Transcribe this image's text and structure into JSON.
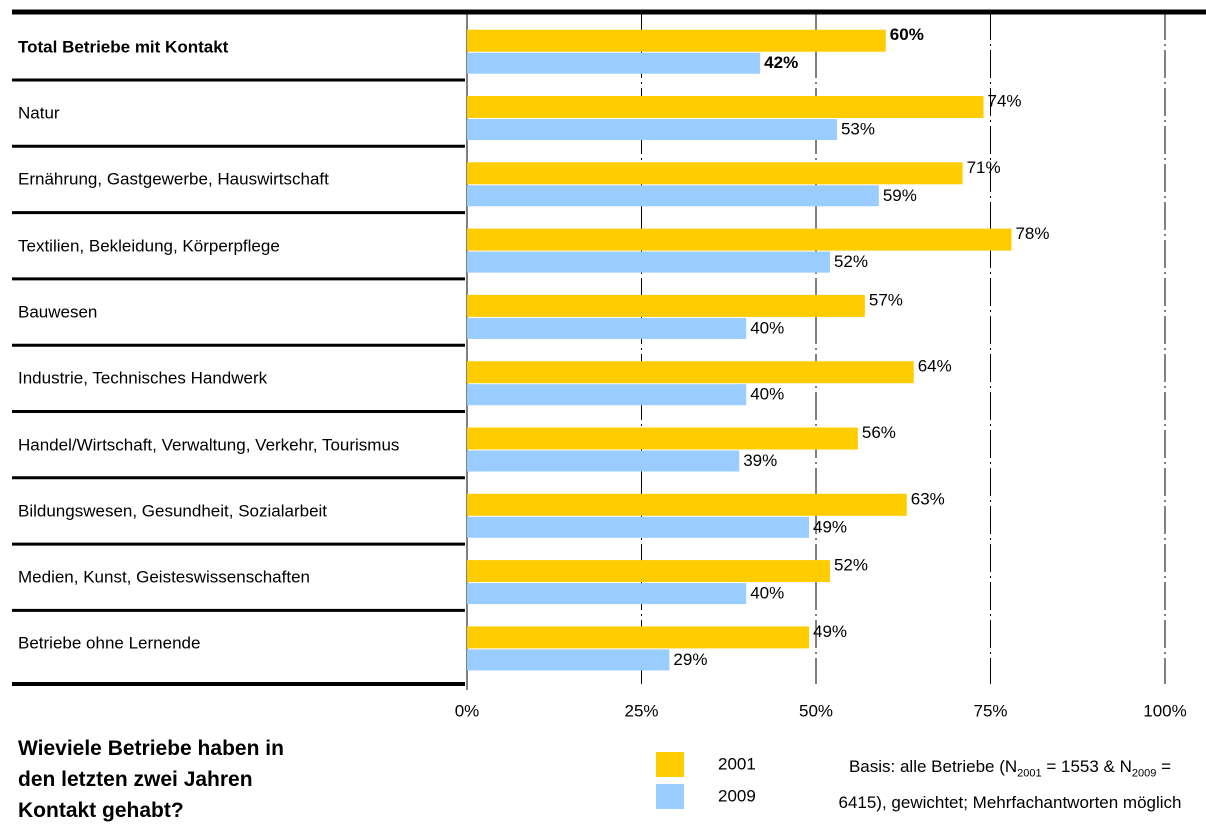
{
  "chart_data": {
    "type": "bar",
    "orientation": "horizontal",
    "title": "Wieviele Betriebe haben in den letzten zwei Jahren Kontakt gehabt?",
    "categories": [
      "Total Betriebe mit Kontakt",
      "Natur",
      "Ernährung, Gastgewerbe, Hauswirtschaft",
      "Textilien, Bekleidung, Körperpflege",
      "Bauwesen",
      "Industrie, Technisches Handwerk",
      "Handel/Wirtschaft, Verwaltung, Verkehr, Tourismus",
      "Bildungswesen, Gesundheit, Sozialarbeit",
      "Medien, Kunst, Geisteswissenschaften",
      "Betriebe ohne Lernende"
    ],
    "series": [
      {
        "name": "2001",
        "color": "#ffcc00",
        "values": [
          60,
          74,
          71,
          78,
          57,
          64,
          56,
          63,
          52,
          49
        ],
        "value_labels": [
          "60%",
          "74%",
          "71%",
          "78%",
          "57%",
          "64%",
          "56%",
          "63%",
          "52%",
          "49%"
        ]
      },
      {
        "name": "2009",
        "color": "#99ccff",
        "values": [
          42,
          53,
          59,
          52,
          40,
          40,
          39,
          49,
          40,
          29
        ],
        "value_labels": [
          "42%",
          "53%",
          "59%",
          "52%",
          "40%",
          "40%",
          "39%",
          "49%",
          "40%",
          "29%"
        ]
      }
    ],
    "xlim": [
      0,
      100
    ],
    "xticks": [
      {
        "value": 0,
        "label": "0%"
      },
      {
        "value": 25,
        "label": "25%"
      },
      {
        "value": 50,
        "label": "50%"
      },
      {
        "value": 75,
        "label": "75%"
      },
      {
        "value": 100,
        "label": "100%"
      }
    ],
    "grid": true,
    "note": [
      "Basis: alle Betriebe (N",
      "2001",
      " = 1553 & N",
      "2009",
      " = 6415), gewichtet; Mehrfachantworten möglich"
    ]
  }
}
